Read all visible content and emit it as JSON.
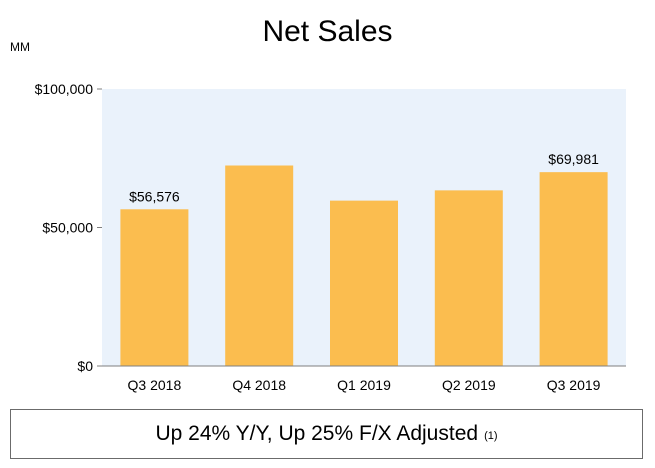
{
  "chart_data": {
    "type": "bar",
    "title": "Net Sales",
    "unit_label": "MM",
    "categories": [
      "Q3 2018",
      "Q4 2018",
      "Q1 2019",
      "Q2 2019",
      "Q3 2019"
    ],
    "values": [
      56576,
      72383,
      59700,
      63404,
      69981
    ],
    "data_labels": [
      "$56,576",
      "",
      "",
      "",
      "$69,981"
    ],
    "ylim": [
      0,
      100000
    ],
    "yticks": [
      0,
      50000,
      100000
    ],
    "ytick_labels": [
      "$0",
      "$50,000",
      "$100,000"
    ],
    "xlabel": "",
    "ylabel": "",
    "colors": {
      "bar": "#FBBD4F",
      "plot_bg": "#EAF2FB",
      "axis": "#7f7f7f"
    }
  },
  "footer": {
    "text": "Up 24% Y/Y, Up 25% F/X Adjusted",
    "footnote": "(1)"
  }
}
